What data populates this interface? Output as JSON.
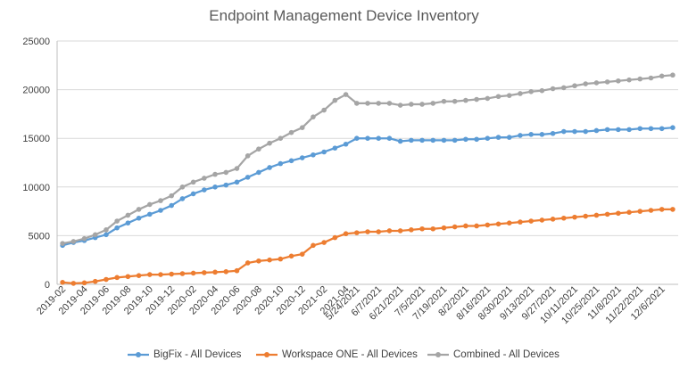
{
  "chart_data": {
    "type": "line",
    "title": "Endpoint Management Device Inventory",
    "xlabel": "",
    "ylabel": "",
    "ylim": [
      0,
      25000
    ],
    "yticks": [
      0,
      5000,
      10000,
      15000,
      20000,
      25000
    ],
    "grid": true,
    "legend_position": "bottom",
    "x": [
      "2019-02",
      "2019-03",
      "2019-04",
      "2019-05",
      "2019-06",
      "2019-07",
      "2019-08",
      "2019-09",
      "2019-10",
      "2019-11",
      "2019-12",
      "2020-01",
      "2020-02",
      "2020-03",
      "2020-04",
      "2020-05",
      "2020-06",
      "2020-07",
      "2020-08",
      "2020-09",
      "2020-10",
      "2020-11",
      "2020-12",
      "2021-01",
      "2021-02",
      "2021-03",
      "2021-04",
      "5/24/2021",
      "5/31/2021",
      "6/7/2021",
      "6/14/2021",
      "6/21/2021",
      "6/28/2021",
      "7/5/2021",
      "7/12/2021",
      "7/19/2021",
      "7/26/2021",
      "8/2/2021",
      "8/9/2021",
      "8/16/2021",
      "8/23/2021",
      "8/30/2021",
      "9/6/2021",
      "9/13/2021",
      "9/20/2021",
      "9/27/2021",
      "10/4/2021",
      "10/11/2021",
      "10/18/2021",
      "10/25/2021",
      "11/1/2021",
      "11/8/2021",
      "11/15/2021",
      "11/22/2021",
      "11/29/2021",
      "12/6/2021",
      "12/13/2021"
    ],
    "x_tick_labels": [
      "2019-02",
      "2019-04",
      "2019-06",
      "2019-08",
      "2019-10",
      "2019-12",
      "2020-02",
      "2020-04",
      "2020-06",
      "2020-08",
      "2020-10",
      "2020-12",
      "2021-02",
      "2021-04",
      "5/24/2021",
      "6/7/2021",
      "6/21/2021",
      "7/5/2021",
      "7/19/2021",
      "8/2/2021",
      "8/16/2021",
      "8/30/2021",
      "9/13/2021",
      "9/27/2021",
      "10/11/2021",
      "10/25/2021",
      "11/8/2021",
      "11/22/2021",
      "12/6/2021"
    ],
    "series": [
      {
        "name": "BigFix - All Devices",
        "color": "#5B9BD5",
        "values": [
          4000,
          4300,
          4500,
          4800,
          5100,
          5800,
          6300,
          6800,
          7200,
          7600,
          8100,
          8800,
          9300,
          9700,
          10000,
          10200,
          10500,
          11000,
          11500,
          12000,
          12400,
          12700,
          13000,
          13300,
          13600,
          14000,
          14400,
          15000,
          15000,
          15000,
          15000,
          14700,
          14800,
          14800,
          14800,
          14800,
          14800,
          14900,
          14900,
          15000,
          15100,
          15100,
          15300,
          15400,
          15400,
          15500,
          15700,
          15700,
          15700,
          15800,
          15900,
          15900,
          15900,
          16000,
          16000,
          16000,
          16100
        ]
      },
      {
        "name": "Workspace ONE - All Devices",
        "color": "#ED7D31",
        "values": [
          200,
          100,
          150,
          300,
          500,
          700,
          800,
          900,
          1000,
          1000,
          1050,
          1100,
          1150,
          1200,
          1250,
          1300,
          1400,
          2200,
          2400,
          2500,
          2600,
          2900,
          3100,
          4000,
          4300,
          4800,
          5200,
          5300,
          5400,
          5400,
          5500,
          5500,
          5600,
          5700,
          5700,
          5800,
          5900,
          6000,
          6000,
          6100,
          6200,
          6300,
          6400,
          6500,
          6600,
          6700,
          6800,
          6900,
          7000,
          7100,
          7200,
          7300,
          7400,
          7500,
          7600,
          7700,
          7700
        ]
      },
      {
        "name": "Combined - All Devices",
        "color": "#A5A5A5",
        "values": [
          4200,
          4400,
          4700,
          5100,
          5600,
          6500,
          7100,
          7700,
          8200,
          8600,
          9100,
          10000,
          10500,
          10900,
          11300,
          11500,
          11900,
          13200,
          13900,
          14500,
          15000,
          15600,
          16100,
          17200,
          17900,
          18900,
          19500,
          18600,
          18600,
          18600,
          18600,
          18400,
          18500,
          18500,
          18600,
          18800,
          18800,
          18900,
          19000,
          19100,
          19300,
          19400,
          19600,
          19800,
          19900,
          20100,
          20200,
          20400,
          20600,
          20700,
          20800,
          20900,
          21000,
          21100,
          21200,
          21400,
          21500
        ]
      }
    ]
  }
}
